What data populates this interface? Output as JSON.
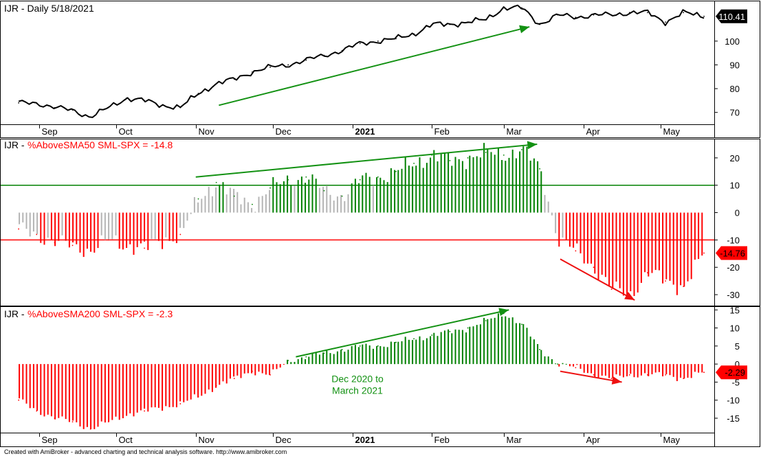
{
  "app": "AmiBroker",
  "footer": "Created with AmiBroker - advanced charting and technical analysis software. http://www.amibroker.com",
  "colors": {
    "price": "#000000",
    "up": "#008000",
    "down": "#ff0000",
    "neutral": "#b4b4b4",
    "arrow_up": "#129112",
    "arrow_down": "#ee1111"
  },
  "chart_data": [
    {
      "type": "line",
      "title": "IJR - Daily 5/18/2021",
      "ticker": "IJR",
      "last_value": "110.41",
      "ylim": [
        65,
        117
      ],
      "yticks": [
        70,
        80,
        90,
        100
      ],
      "x_axis": {
        "months": [
          "Sep",
          "Oct",
          "Nov",
          "Dec",
          "2021",
          "Feb",
          "Mar",
          "Apr",
          "May"
        ]
      },
      "x": [
        "2020-08-24",
        "2020-08-31",
        "2020-09-07",
        "2020-09-14",
        "2020-09-21",
        "2020-09-28",
        "2020-10-05",
        "2020-10-12",
        "2020-10-19",
        "2020-10-26",
        "2020-11-02",
        "2020-11-09",
        "2020-11-16",
        "2020-11-23",
        "2020-11-30",
        "2020-12-07",
        "2020-12-14",
        "2020-12-21",
        "2020-12-28",
        "2021-01-04",
        "2021-01-11",
        "2021-01-18",
        "2021-01-25",
        "2021-02-01",
        "2021-02-08",
        "2021-02-15",
        "2021-02-22",
        "2021-03-01",
        "2021-03-08",
        "2021-03-15",
        "2021-03-22",
        "2021-03-29",
        "2021-04-05",
        "2021-04-12",
        "2021-04-19",
        "2021-04-26",
        "2021-05-03",
        "2021-05-10",
        "2021-05-18"
      ],
      "y": [
        74,
        74,
        72,
        71,
        68,
        72,
        76,
        75,
        73,
        72,
        78,
        82,
        84,
        87,
        89,
        90,
        92,
        94,
        96,
        99,
        100,
        101,
        103,
        107,
        107,
        108,
        109,
        114,
        114,
        107,
        111,
        110,
        111,
        111,
        112,
        112,
        108,
        112,
        110.41
      ],
      "annotations": [
        {
          "type": "trend-arrow",
          "from": [
            "2020-11-10",
            73
          ],
          "to": [
            "2021-03-11",
            106
          ]
        }
      ]
    },
    {
      "type": "bar",
      "title": "IJR - %AboveSMA50 SML-SPX = -14.8",
      "label_prefix": "IJR - ",
      "label_indicator": "%AboveSMA50 SML-SPX = -14.8",
      "last_value": "-14.76",
      "ylim": [
        -34,
        27
      ],
      "yticks": [
        20,
        10,
        0,
        -10,
        -20,
        -30
      ],
      "reference_lines": [
        {
          "value": 10,
          "color": "#008000"
        },
        {
          "value": -10,
          "color": "#ff0000"
        }
      ],
      "x_axis": {
        "months": [
          "Sep",
          "Oct",
          "Nov",
          "Dec",
          "2021",
          "Feb",
          "Mar",
          "Apr",
          "May"
        ]
      },
      "x": [
        "2020-08-24",
        "2020-08-31",
        "2020-09-07",
        "2020-09-14",
        "2020-09-21",
        "2020-09-28",
        "2020-10-05",
        "2020-10-12",
        "2020-10-19",
        "2020-10-26",
        "2020-11-02",
        "2020-11-09",
        "2020-11-16",
        "2020-11-23",
        "2020-11-30",
        "2020-12-07",
        "2020-12-14",
        "2020-12-21",
        "2020-12-28",
        "2021-01-04",
        "2021-01-11",
        "2021-01-18",
        "2021-01-25",
        "2021-02-01",
        "2021-02-08",
        "2021-02-15",
        "2021-02-22",
        "2021-03-01",
        "2021-03-08",
        "2021-03-15",
        "2021-03-22",
        "2021-03-29",
        "2021-04-05",
        "2021-04-12",
        "2021-04-19",
        "2021-04-26",
        "2021-05-03",
        "2021-05-10",
        "2021-05-18"
      ],
      "values": [
        -6,
        -8,
        -11,
        -12,
        -14,
        -10,
        -12,
        -13,
        -10,
        -8,
        5,
        11,
        6,
        3,
        9,
        12,
        13,
        8,
        6,
        12,
        13,
        15,
        18,
        21,
        19,
        20,
        22,
        21,
        23,
        16,
        -10,
        -14,
        -20,
        -28,
        -30,
        -22,
        -25,
        -27,
        -14.8
      ],
      "annotations": [
        {
          "type": "trend-arrow",
          "from": [
            "2020-11-01",
            13
          ],
          "to": [
            "2021-03-14",
            25
          ]
        },
        {
          "type": "trend-arrow",
          "from": [
            "2021-03-23",
            -17
          ],
          "to": [
            "2021-04-21",
            -32
          ]
        }
      ]
    },
    {
      "type": "bar",
      "title": "IJR - %AboveSMA200 SML-SPX = -2.3",
      "label_prefix": "IJR - ",
      "label_indicator": "%AboveSMA200 SML-SPX = -2.3",
      "last_value": "-2.29",
      "ylim": [
        -19,
        16
      ],
      "yticks": [
        15,
        10,
        5,
        0,
        -5,
        -10,
        -15
      ],
      "x_axis": {
        "months": [
          "Sep",
          "Oct",
          "Nov",
          "Dec",
          "2021",
          "Feb",
          "Mar",
          "Apr",
          "May"
        ]
      },
      "x": [
        "2020-08-24",
        "2020-08-31",
        "2020-09-07",
        "2020-09-14",
        "2020-09-21",
        "2020-09-28",
        "2020-10-05",
        "2020-10-12",
        "2020-10-19",
        "2020-10-26",
        "2020-11-02",
        "2020-11-09",
        "2020-11-16",
        "2020-11-23",
        "2020-11-30",
        "2020-12-07",
        "2020-12-14",
        "2020-12-21",
        "2020-12-28",
        "2021-01-04",
        "2021-01-11",
        "2021-01-18",
        "2021-01-25",
        "2021-02-01",
        "2021-02-08",
        "2021-02-15",
        "2021-02-22",
        "2021-03-01",
        "2021-03-08",
        "2021-03-15",
        "2021-03-22",
        "2021-03-29",
        "2021-04-05",
        "2021-04-12",
        "2021-04-19",
        "2021-04-26",
        "2021-05-03",
        "2021-05-10",
        "2021-05-18"
      ],
      "values": [
        -10,
        -13,
        -15,
        -16,
        -18,
        -16,
        -14,
        -13,
        -12,
        -11,
        -9,
        -6,
        -4,
        -2,
        -3,
        1,
        2,
        3,
        4,
        5,
        5,
        6,
        7,
        8,
        9,
        10,
        12,
        14,
        11,
        4,
        0,
        -1,
        -3,
        -4,
        -3,
        -3,
        -3,
        -4,
        -2.3
      ],
      "annotations": [
        {
          "type": "trend-arrow",
          "from": [
            "2020-12-10",
            2
          ],
          "to": [
            "2021-03-03",
            15
          ]
        },
        {
          "type": "trend-arrow",
          "from": [
            "2021-03-23",
            -2
          ],
          "to": [
            "2021-04-16",
            -5
          ]
        },
        {
          "type": "text",
          "lines": [
            "Dec 2020 to",
            "March 2021"
          ],
          "at": [
            "2021-01-03",
            -2
          ]
        }
      ]
    }
  ]
}
